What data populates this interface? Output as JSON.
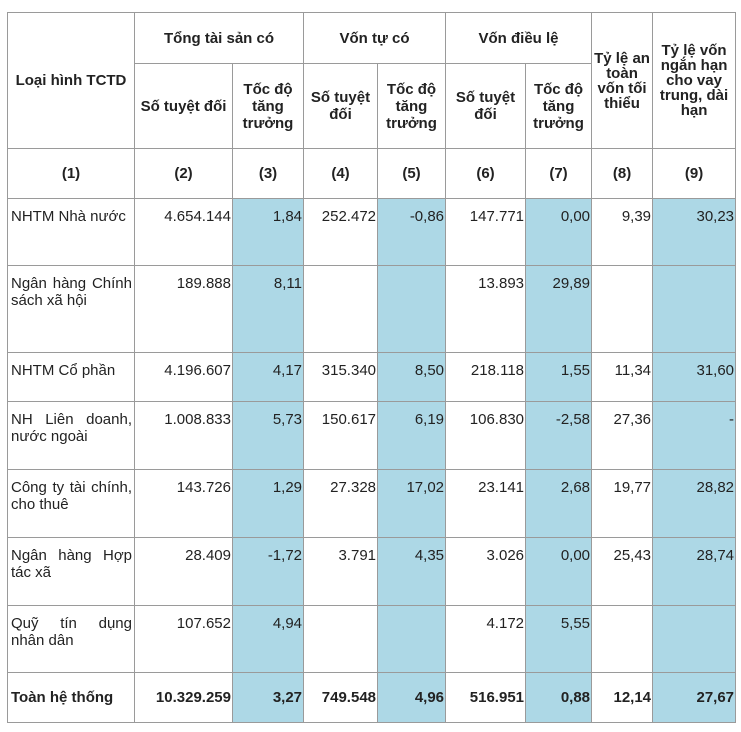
{
  "header": {
    "loai_hinh": "Loại hình TCTD",
    "tong_tai_san": "Tổng tài sản có",
    "von_tu_co": "Vốn tự có",
    "von_dieu_le": "Vốn điều lệ",
    "so_tuyet_doi": "Số tuyệt đối",
    "toc_do": "Tốc độ tăng trưởng",
    "ty_le_an_toan": "Tỷ lệ an toàn vốn tối thiểu",
    "ty_le_von": "Tỷ lệ vốn ngắn hạn cho vay trung, dài hạn",
    "col_numbers": [
      "(1)",
      "(2)",
      "(3)",
      "(4)",
      "(5)",
      "(6)",
      "(7)",
      "(8)",
      "(9)"
    ]
  },
  "rows": [
    {
      "name": "NHTM Nhà nước",
      "c2": "4.654.144",
      "c3": "1,84",
      "c4": "252.472",
      "c5": "-0,86",
      "c6": "147.771",
      "c7": "0,00",
      "c8": "9,39",
      "c9": "30,23"
    },
    {
      "name": "Ngân hàng Chính sách xã hội",
      "c2": "189.888",
      "c3": "8,11",
      "c4": "",
      "c5": "",
      "c6": "13.893",
      "c7": "29,89",
      "c8": "",
      "c9": ""
    },
    {
      "name": "NHTM Cổ phần",
      "c2": "4.196.607",
      "c3": "4,17",
      "c4": "315.340",
      "c5": "8,50",
      "c6": "218.118",
      "c7": "1,55",
      "c8": "11,34",
      "c9": "31,60"
    },
    {
      "name": "NH Liên doanh, nước ngoài",
      "c2": "1.008.833",
      "c3": "5,73",
      "c4": "150.617",
      "c5": "6,19",
      "c6": "106.830",
      "c7": "-2,58",
      "c8": "27,36",
      "c9": "-"
    },
    {
      "name": "Công ty tài chính, cho thuê",
      "c2": "143.726",
      "c3": "1,29",
      "c4": "27.328",
      "c5": "17,02",
      "c6": "23.141",
      "c7": "2,68",
      "c8": "19,77",
      "c9": "28,82"
    },
    {
      "name": "Ngân hàng Hợp tác xã",
      "c2": "28.409",
      "c3": "-1,72",
      "c4": "3.791",
      "c5": "4,35",
      "c6": "3.026",
      "c7": "0,00",
      "c8": "25,43",
      "c9": "28,74"
    },
    {
      "name": "Quỹ tín dụng nhân dân",
      "c2": "107.652",
      "c3": "4,94",
      "c4": "",
      "c5": "",
      "c6": "4.172",
      "c7": "5,55",
      "c8": "",
      "c9": ""
    }
  ],
  "total": {
    "name": "Toàn hệ thống",
    "c2": "10.329.259",
    "c3": "3,27",
    "c4": "749.548",
    "c5": "4,96",
    "c6": "516.951",
    "c7": "0,88",
    "c8": "12,14",
    "c9": "27,67"
  },
  "colors": {
    "highlight": "#add8e6",
    "border": "#9a9a9a"
  }
}
